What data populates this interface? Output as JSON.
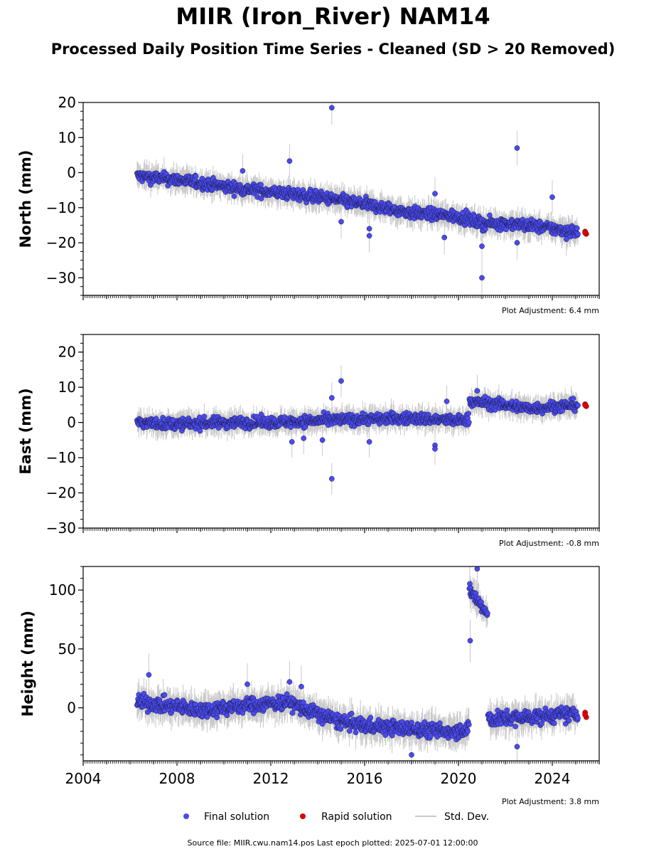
{
  "title": "MIIR (Iron_River) NAM14",
  "subtitle": "Processed Daily Position Time Series - Cleaned (SD > 20 Removed)",
  "source_line": "Source file: MIIR.cwu.nam14.pos  Last epoch plotted: 2025-07-01 12:00:00",
  "legend": [
    {
      "label": "Final solution",
      "color": "#4a4af0",
      "marker": "circle"
    },
    {
      "label": "Rapid solution",
      "color": "#e00000",
      "marker": "circle"
    },
    {
      "label": "Std. Dev.",
      "color": "#c8c8c8",
      "marker": "line"
    }
  ],
  "chart_data": [
    {
      "type": "scatter",
      "panel": "north",
      "ylabel": "North (mm)",
      "adjustment": "Plot Adjustment: 6.4 mm",
      "xlim": [
        2004,
        2026
      ],
      "ylim": [
        -35,
        20
      ],
      "yticks": [
        20,
        10,
        0,
        -10,
        -20,
        -30
      ],
      "ytick_labels": [
        "20",
        "10",
        "0",
        "−10",
        "−20",
        "−30"
      ],
      "trend_final": [
        [
          2006.3,
          -1.0
        ],
        [
          2008.0,
          -2.0
        ],
        [
          2010.0,
          -4.0
        ],
        [
          2012.0,
          -5.5
        ],
        [
          2014.0,
          -7.0
        ],
        [
          2016.0,
          -9.0
        ],
        [
          2018.0,
          -11.5
        ],
        [
          2020.0,
          -12.5
        ],
        [
          2021.0,
          -14.5
        ],
        [
          2022.0,
          -14.5
        ],
        [
          2023.0,
          -15.0
        ],
        [
          2025.1,
          -17.0
        ]
      ],
      "noise": 1.6,
      "outliers": [
        [
          2010.8,
          0.5
        ],
        [
          2012.8,
          3.3
        ],
        [
          2014.6,
          18.5
        ],
        [
          2015.0,
          -14.0
        ],
        [
          2016.2,
          -16.0
        ],
        [
          2016.2,
          -18.0
        ],
        [
          2019.0,
          -6.0
        ],
        [
          2019.4,
          -18.5
        ],
        [
          2021.0,
          -21.0
        ],
        [
          2021.0,
          -30.0
        ],
        [
          2022.5,
          7.0
        ],
        [
          2022.5,
          -20.0
        ],
        [
          2024.0,
          -7.0
        ],
        [
          2024.6,
          -19.0
        ]
      ],
      "rapid": [
        [
          2025.4,
          -16.8
        ],
        [
          2025.45,
          -17.5
        ],
        [
          2025.4,
          -17.2
        ]
      ]
    },
    {
      "type": "scatter",
      "panel": "east",
      "ylabel": "East (mm)",
      "adjustment": "Plot Adjustment: -0.8 mm",
      "xlim": [
        2004,
        2026
      ],
      "ylim": [
        -30,
        25
      ],
      "yticks": [
        20,
        10,
        0,
        -10,
        -20,
        -30
      ],
      "ytick_labels": [
        "20",
        "10",
        "0",
        "−10",
        "−20",
        "−30"
      ],
      "trend_final": [
        [
          2006.3,
          0.0
        ],
        [
          2008.0,
          -0.5
        ],
        [
          2010.0,
          0.0
        ],
        [
          2012.0,
          0.0
        ],
        [
          2014.0,
          0.5
        ],
        [
          2016.0,
          1.0
        ],
        [
          2018.0,
          1.2
        ],
        [
          2020.0,
          0.5
        ],
        [
          2020.4,
          1.0
        ],
        [
          2020.5,
          6.0
        ],
        [
          2022.0,
          5.0
        ],
        [
          2023.0,
          4.0
        ],
        [
          2025.1,
          5.0
        ]
      ],
      "noise": 1.5,
      "outliers": [
        [
          2012.9,
          -5.5
        ],
        [
          2013.4,
          -4.5
        ],
        [
          2014.2,
          -5.0
        ],
        [
          2014.6,
          7.0
        ],
        [
          2014.6,
          -16.0
        ],
        [
          2015.0,
          11.8
        ],
        [
          2016.2,
          -5.5
        ],
        [
          2019.0,
          -6.5
        ],
        [
          2019.0,
          -7.5
        ],
        [
          2019.5,
          6.0
        ],
        [
          2020.8,
          9.0
        ]
      ],
      "rapid": [
        [
          2025.4,
          5.2
        ],
        [
          2025.45,
          4.6
        ],
        [
          2025.4,
          4.9
        ]
      ]
    },
    {
      "type": "scatter",
      "panel": "height",
      "ylabel": "Height (mm)",
      "adjustment": "Plot Adjustment: 3.8 mm",
      "xlim": [
        2004,
        2026
      ],
      "ylim": [
        -45,
        120
      ],
      "yticks": [
        100,
        50,
        0
      ],
      "ytick_labels": [
        "100",
        "50",
        "0"
      ],
      "xticks": [
        2004,
        2008,
        2012,
        2016,
        2020,
        2024
      ],
      "xtick_labels": [
        "2004",
        "2008",
        "2012",
        "2016",
        "2020",
        "2024"
      ],
      "trend_final": [
        [
          2006.3,
          5.0
        ],
        [
          2007.5,
          2.0
        ],
        [
          2009.0,
          -2.0
        ],
        [
          2011.0,
          2.0
        ],
        [
          2012.8,
          5.0
        ],
        [
          2013.5,
          -2.0
        ],
        [
          2015.0,
          -12.0
        ],
        [
          2016.0,
          -15.0
        ],
        [
          2018.0,
          -18.0
        ],
        [
          2019.5,
          -20.0
        ],
        [
          2020.4,
          -18.0
        ],
        [
          2020.5,
          100.0
        ],
        [
          2021.2,
          80.0
        ],
        [
          2021.3,
          -10.0
        ],
        [
          2023.0,
          -8.0
        ],
        [
          2025.1,
          -5.0
        ]
      ],
      "noise": 6.0,
      "outliers": [
        [
          2006.8,
          28.0
        ],
        [
          2011.0,
          20.0
        ],
        [
          2012.8,
          22.0
        ],
        [
          2013.3,
          18.0
        ],
        [
          2020.5,
          57.0
        ],
        [
          2020.8,
          118.0
        ],
        [
          2022.5,
          -33.0
        ],
        [
          2018.0,
          -40.0
        ]
      ],
      "rapid": [
        [
          2025.4,
          -4.0
        ],
        [
          2025.45,
          -8.0
        ],
        [
          2025.4,
          -6.0
        ]
      ]
    }
  ]
}
